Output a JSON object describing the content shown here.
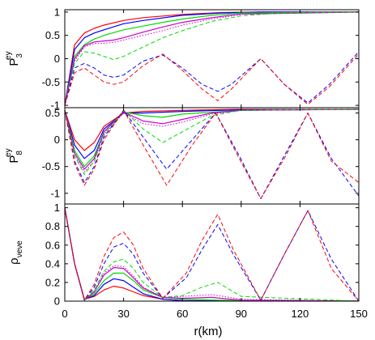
{
  "figure": {
    "xlabel": "r(km)",
    "x_ticks": [
      "0",
      "30",
      "60",
      "90",
      "120",
      "150"
    ]
  },
  "chart_data": [
    {
      "type": "line",
      "ylabel": "P_3^ey",
      "ylabel_main": "P",
      "ylabel_sub": "3",
      "ylabel_sup": "ey",
      "xlim": [
        0,
        150
      ],
      "ylim": [
        -1.05,
        1.05
      ],
      "y_ticks": [
        "1",
        "0.5",
        "0",
        "-0.5",
        "-1"
      ],
      "grid": false,
      "series": [
        {
          "color": "#ff0000",
          "dash": "solid",
          "x": [
            0,
            5,
            10,
            15,
            20,
            30,
            40,
            60,
            80,
            100,
            150
          ],
          "y": [
            -1,
            0.3,
            0.55,
            0.65,
            0.72,
            0.82,
            0.88,
            0.95,
            0.99,
            1,
            1
          ]
        },
        {
          "color": "#0000ff",
          "dash": "solid",
          "x": [
            0,
            5,
            10,
            15,
            20,
            30,
            40,
            60,
            80,
            100,
            150
          ],
          "y": [
            -1,
            0.2,
            0.45,
            0.55,
            0.62,
            0.75,
            0.82,
            0.93,
            0.98,
            1,
            1
          ]
        },
        {
          "color": "#00dd00",
          "dash": "solid",
          "x": [
            0,
            5,
            10,
            15,
            20,
            30,
            40,
            50,
            60,
            75,
            90,
            150
          ],
          "y": [
            -1,
            0.05,
            0.3,
            0.42,
            0.5,
            0.62,
            0.7,
            0.78,
            0.85,
            0.93,
            0.98,
            1
          ]
        },
        {
          "color": "#cc00cc",
          "dash": "solid",
          "x": [
            0,
            5,
            10,
            15,
            20,
            25,
            30,
            40,
            50,
            60,
            75,
            90,
            150
          ],
          "y": [
            -1,
            0,
            0.28,
            0.36,
            0.38,
            0.4,
            0.45,
            0.57,
            0.68,
            0.78,
            0.88,
            0.96,
            1
          ]
        },
        {
          "color": "#cc00cc",
          "dash": "dotted",
          "x": [
            0,
            5,
            10,
            15,
            20,
            25,
            30,
            40,
            50,
            60,
            75,
            90,
            150
          ],
          "y": [
            -1,
            -0.05,
            0.25,
            0.33,
            0.33,
            0.35,
            0.4,
            0.5,
            0.6,
            0.72,
            0.85,
            0.95,
            1
          ]
        },
        {
          "color": "#00dd00",
          "dash": "dashed",
          "x": [
            0,
            5,
            10,
            15,
            20,
            25,
            30,
            40,
            50,
            60,
            75,
            90,
            110,
            150
          ],
          "y": [
            -1,
            -0.1,
            0.15,
            0.12,
            0.05,
            -0.02,
            0.05,
            0.25,
            0.45,
            0.6,
            0.8,
            0.92,
            0.98,
            1
          ]
        },
        {
          "color": "#0000ff",
          "dash": "dashed",
          "x": [
            0,
            5,
            10,
            15,
            20,
            25,
            30,
            40,
            50,
            60,
            70,
            78,
            85,
            100,
            112,
            124,
            135,
            150
          ],
          "y": [
            -1,
            -0.2,
            -0.1,
            -0.2,
            -0.35,
            -0.4,
            -0.35,
            -0.05,
            0.08,
            -0.2,
            -0.55,
            -0.7,
            -0.55,
            0,
            -0.55,
            -0.95,
            -0.55,
            0.15
          ]
        },
        {
          "color": "#ff0000",
          "dash": "dashed",
          "x": [
            0,
            5,
            10,
            15,
            20,
            25,
            30,
            40,
            50,
            60,
            70,
            78,
            85,
            100,
            112,
            124,
            135,
            150
          ],
          "y": [
            -1,
            -0.3,
            -0.2,
            -0.35,
            -0.5,
            -0.55,
            -0.5,
            -0.15,
            0.1,
            -0.25,
            -0.65,
            -0.9,
            -0.65,
            0,
            -0.55,
            -0.98,
            -0.6,
            0.1
          ]
        }
      ]
    },
    {
      "type": "line",
      "ylabel": "P_8^ey",
      "ylabel_main": "P",
      "ylabel_sub": "8",
      "ylabel_sup": "ey",
      "xlim": [
        0,
        150
      ],
      "ylim": [
        -1.2,
        0.6
      ],
      "y_ticks": [
        "0.5",
        "0",
        "-0.5",
        "-1"
      ],
      "grid": false,
      "series": [
        {
          "color": "#ff0000",
          "dash": "solid",
          "x": [
            0,
            5,
            10,
            15,
            20,
            30,
            40,
            60,
            90,
            150
          ],
          "y": [
            0.55,
            0,
            -0.2,
            -0.05,
            0.25,
            0.5,
            0.53,
            0.55,
            0.57,
            0.57
          ]
        },
        {
          "color": "#0000ff",
          "dash": "solid",
          "x": [
            0,
            5,
            10,
            15,
            20,
            30,
            40,
            60,
            90,
            150
          ],
          "y": [
            0.55,
            -0.1,
            -0.35,
            -0.2,
            0.2,
            0.5,
            0.5,
            0.53,
            0.56,
            0.57
          ]
        },
        {
          "color": "#00dd00",
          "dash": "solid",
          "x": [
            0,
            5,
            10,
            15,
            20,
            30,
            40,
            50,
            60,
            90,
            150
          ],
          "y": [
            0.55,
            -0.2,
            -0.5,
            -0.3,
            0.15,
            0.52,
            0.45,
            0.42,
            0.48,
            0.55,
            0.57
          ]
        },
        {
          "color": "#cc00cc",
          "dash": "solid",
          "x": [
            0,
            5,
            10,
            15,
            20,
            30,
            40,
            50,
            60,
            75,
            90,
            150
          ],
          "y": [
            0.55,
            -0.25,
            -0.55,
            -0.35,
            0.15,
            0.52,
            0.35,
            0.3,
            0.38,
            0.5,
            0.55,
            0.57
          ]
        },
        {
          "color": "#cc00cc",
          "dash": "dotted",
          "x": [
            0,
            5,
            10,
            15,
            20,
            30,
            40,
            50,
            60,
            75,
            90,
            150
          ],
          "y": [
            0.55,
            -0.3,
            -0.6,
            -0.4,
            0.1,
            0.5,
            0.3,
            0.25,
            0.33,
            0.48,
            0.55,
            0.57
          ]
        },
        {
          "color": "#00dd00",
          "dash": "dashed",
          "x": [
            0,
            5,
            10,
            15,
            20,
            30,
            40,
            50,
            60,
            75,
            90,
            120,
            150
          ],
          "y": [
            0.55,
            -0.3,
            -0.65,
            -0.4,
            0.1,
            0.55,
            0.2,
            -0.05,
            0.15,
            0.45,
            0.55,
            0.57,
            0.57
          ]
        },
        {
          "color": "#0000ff",
          "dash": "dashed",
          "x": [
            0,
            5,
            10,
            15,
            20,
            30,
            40,
            52,
            65,
            77,
            89,
            100,
            112,
            124,
            136,
            150
          ],
          "y": [
            0.55,
            -0.4,
            -0.8,
            -0.5,
            0.05,
            0.55,
            0.05,
            -0.55,
            0,
            0.5,
            -0.3,
            -1.1,
            -0.3,
            0.5,
            -0.35,
            -1.05
          ]
        },
        {
          "color": "#ff0000",
          "dash": "dashed",
          "x": [
            0,
            5,
            10,
            15,
            20,
            30,
            40,
            52,
            65,
            77,
            89,
            100,
            112,
            124,
            136,
            150
          ],
          "y": [
            0.55,
            -0.45,
            -0.85,
            -0.55,
            0,
            0.55,
            -0.1,
            -0.85,
            -0.1,
            0.5,
            -0.35,
            -1.1,
            -0.35,
            0.5,
            -0.4,
            -0.8
          ]
        }
      ]
    },
    {
      "type": "line",
      "ylabel": "ρ_νeνe",
      "ylabel_main": "ρ",
      "ylabel_sub": "νeνe",
      "ylabel_sup": "",
      "xlim": [
        0,
        150
      ],
      "ylim": [
        0,
        1.04
      ],
      "y_ticks": [
        "1",
        "0.8",
        "0.6",
        "0.4",
        "0.2",
        "0"
      ],
      "grid": false,
      "series": [
        {
          "color": "#ff0000",
          "dash": "solid",
          "x": [
            0,
            5,
            10,
            15,
            20,
            25,
            30,
            35,
            40,
            50,
            60,
            150
          ],
          "y": [
            1,
            0.4,
            0.02,
            0.05,
            0.12,
            0.16,
            0.14,
            0.1,
            0.06,
            0.02,
            0.005,
            0
          ]
        },
        {
          "color": "#0000ff",
          "dash": "solid",
          "x": [
            0,
            5,
            10,
            15,
            20,
            25,
            30,
            35,
            40,
            50,
            60,
            150
          ],
          "y": [
            1,
            0.4,
            0.02,
            0.06,
            0.18,
            0.24,
            0.22,
            0.15,
            0.08,
            0.02,
            0.005,
            0
          ]
        },
        {
          "color": "#00dd00",
          "dash": "solid",
          "x": [
            0,
            5,
            10,
            15,
            20,
            25,
            30,
            35,
            40,
            50,
            60,
            80,
            150
          ],
          "y": [
            1,
            0.4,
            0.02,
            0.08,
            0.22,
            0.3,
            0.3,
            0.22,
            0.12,
            0.04,
            0.02,
            0.01,
            0
          ]
        },
        {
          "color": "#cc00cc",
          "dash": "solid",
          "x": [
            0,
            5,
            10,
            15,
            20,
            25,
            30,
            35,
            40,
            50,
            60,
            75,
            90,
            150
          ],
          "y": [
            1,
            0.4,
            0.01,
            0.1,
            0.28,
            0.36,
            0.35,
            0.25,
            0.14,
            0.04,
            0.03,
            0.04,
            0.01,
            0
          ]
        },
        {
          "color": "#cc00cc",
          "dash": "dotted",
          "x": [
            0,
            5,
            10,
            15,
            20,
            25,
            30,
            35,
            40,
            50,
            60,
            75,
            90,
            150
          ],
          "y": [
            1,
            0.4,
            0.01,
            0.1,
            0.3,
            0.38,
            0.37,
            0.27,
            0.15,
            0.04,
            0.05,
            0.07,
            0.02,
            0
          ]
        },
        {
          "color": "#00dd00",
          "dash": "dashed",
          "x": [
            0,
            5,
            10,
            15,
            20,
            25,
            30,
            35,
            40,
            50,
            60,
            70,
            78,
            90,
            150
          ],
          "y": [
            1,
            0.4,
            0.01,
            0.12,
            0.32,
            0.42,
            0.45,
            0.35,
            0.2,
            0.04,
            0.06,
            0.15,
            0.2,
            0.05,
            0
          ]
        },
        {
          "color": "#0000ff",
          "dash": "dashed",
          "x": [
            0,
            5,
            10,
            15,
            20,
            25,
            30,
            35,
            40,
            50,
            62,
            70,
            78,
            86,
            100,
            112,
            124,
            136,
            150
          ],
          "y": [
            1,
            0.4,
            0.01,
            0.15,
            0.4,
            0.58,
            0.62,
            0.5,
            0.3,
            0.03,
            0.25,
            0.55,
            0.82,
            0.5,
            0.01,
            0.5,
            0.97,
            0.45,
            0
          ]
        },
        {
          "color": "#ff0000",
          "dash": "dashed",
          "x": [
            0,
            5,
            10,
            15,
            20,
            25,
            30,
            35,
            40,
            50,
            62,
            70,
            78,
            86,
            100,
            112,
            124,
            136,
            150
          ],
          "y": [
            1,
            0.4,
            0.01,
            0.18,
            0.48,
            0.68,
            0.74,
            0.6,
            0.35,
            0.03,
            0.3,
            0.65,
            0.93,
            0.55,
            0.01,
            0.5,
            0.97,
            0.35,
            0
          ]
        }
      ]
    }
  ]
}
